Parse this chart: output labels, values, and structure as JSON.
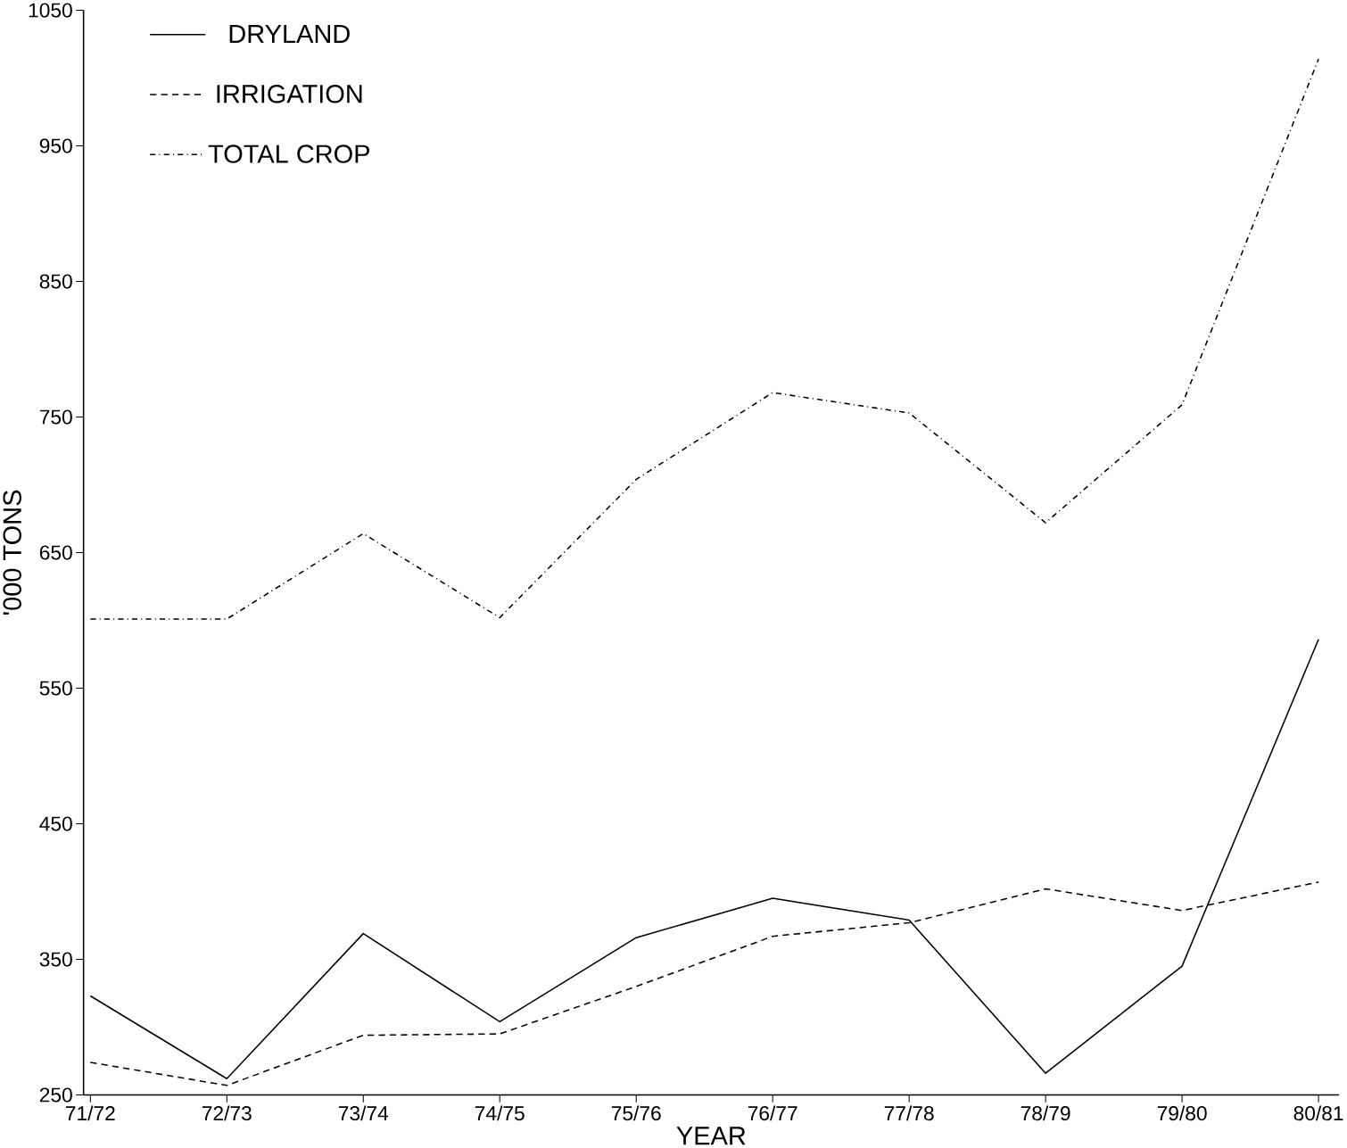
{
  "chart_data": {
    "type": "line",
    "xlabel": "YEAR",
    "ylabel": "'000 TONS",
    "categories": [
      "71/72",
      "72/73",
      "73/74",
      "74/75",
      "75/76",
      "76/77",
      "77/78",
      "78/79",
      "79/80",
      "80/81"
    ],
    "series": [
      {
        "name": "DRYLAND",
        "color": "#000000",
        "line_style": "solid",
        "values": [
          323,
          262,
          369,
          304,
          366,
          395,
          379,
          266,
          345,
          586
        ]
      },
      {
        "name": "IRRIGATION",
        "color": "#000000",
        "line_style": "dashed",
        "values": [
          274,
          257,
          294,
          295,
          330,
          367,
          377,
          402,
          386,
          407
        ]
      },
      {
        "name": "TOTAL CROP",
        "color": "#000000",
        "line_style": "dashdot",
        "values": [
          601,
          601,
          664,
          602,
          704,
          768,
          753,
          672,
          759,
          1014
        ]
      }
    ],
    "ylim": [
      250,
      1050
    ],
    "yticks": [
      250,
      350,
      450,
      550,
      650,
      750,
      850,
      950,
      1050
    ],
    "grid": false,
    "legend": "top left",
    "marker": "none"
  }
}
